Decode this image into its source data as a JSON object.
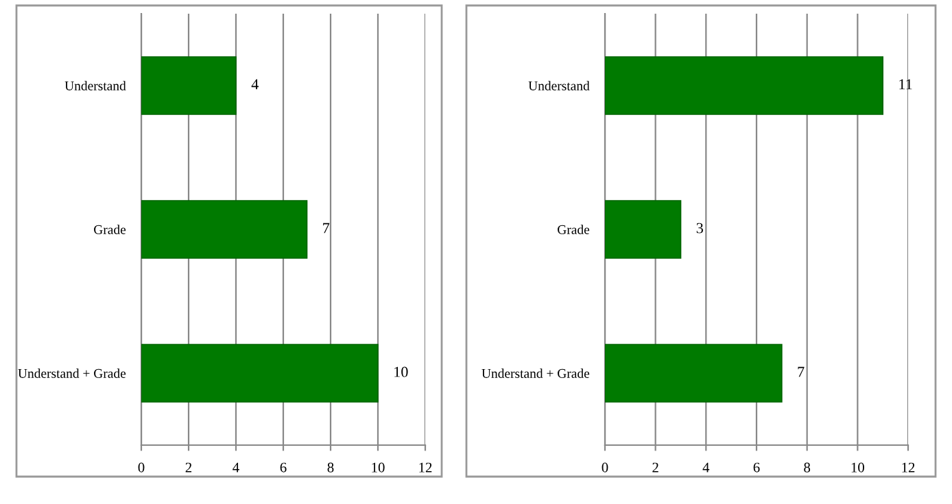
{
  "chart_data": [
    {
      "type": "bar",
      "orientation": "horizontal",
      "categories": [
        "Understand",
        "Grade",
        "Understand + Grade"
      ],
      "values": [
        4,
        7,
        10
      ],
      "color": "#007a00",
      "xlim": [
        0,
        12
      ],
      "xticks": [
        0,
        2,
        4,
        6,
        8,
        10,
        12
      ],
      "grid": "x",
      "data_labels": true
    },
    {
      "type": "bar",
      "orientation": "horizontal",
      "categories": [
        "Understand",
        "Grade",
        "Understand + Grade"
      ],
      "values": [
        11,
        3,
        7
      ],
      "color": "#007a00",
      "xlim": [
        0,
        12
      ],
      "xticks": [
        0,
        2,
        4,
        6,
        8,
        10,
        12
      ],
      "grid": "x",
      "data_labels": true
    }
  ]
}
